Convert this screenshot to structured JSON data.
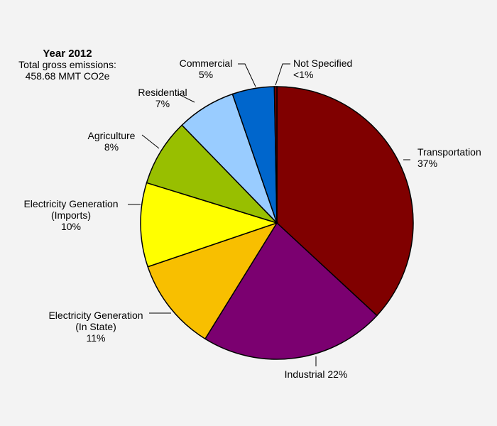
{
  "chart_data": {
    "type": "pie",
    "title": "Year 2012",
    "subtitle_lines": [
      "Total gross emissions:",
      "458.68 MMT CO2e"
    ],
    "slices": [
      {
        "name": "Transportation",
        "value_label": "37%",
        "value": 37,
        "color": "#800000",
        "label_lines": [
          "Transportation",
          "37%"
        ]
      },
      {
        "name": "Industrial",
        "value_label": "22%",
        "value": 22,
        "color": "#7b0070",
        "label_lines": [
          "Industrial 22%"
        ]
      },
      {
        "name": "Electricity Generation (In State)",
        "value_label": "11%",
        "value": 11,
        "color": "#f8bf00",
        "label_lines": [
          "Electricity Generation",
          "(In State)",
          "11%"
        ]
      },
      {
        "name": "Electricity Generation (Imports)",
        "value_label": "10%",
        "value": 10,
        "color": "#ffff00",
        "label_lines": [
          "Electricity Generation",
          "(Imports)",
          "10%"
        ]
      },
      {
        "name": "Agriculture",
        "value_label": "8%",
        "value": 8,
        "color": "#98bf00",
        "label_lines": [
          "Agriculture",
          "8%"
        ]
      },
      {
        "name": "Residential",
        "value_label": "7%",
        "value": 7,
        "color": "#99ccff",
        "label_lines": [
          "Residential",
          "7%"
        ]
      },
      {
        "name": "Commercial",
        "value_label": "5%",
        "value": 5,
        "color": "#0066cc",
        "label_lines": [
          "Commercial",
          "5%"
        ]
      },
      {
        "name": "Not Specified",
        "value_label": "<1%",
        "value": 0.3,
        "color": "#800000",
        "label_lines": [
          "Not Specified",
          "<1%"
        ]
      }
    ]
  }
}
